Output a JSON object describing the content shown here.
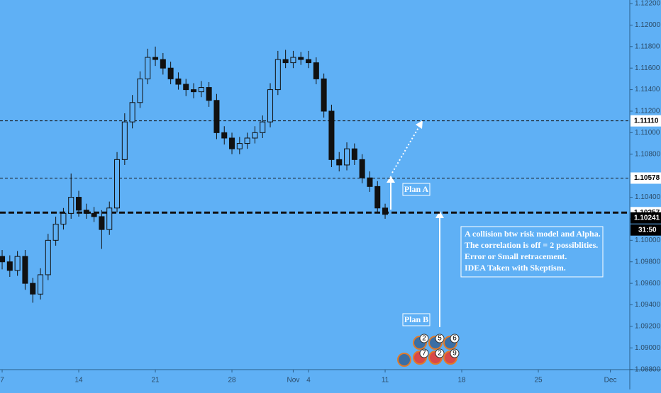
{
  "chart_data": {
    "type": "candlestick",
    "background": "#5fb0f5",
    "candle_color": "#111111",
    "x": [
      0,
      0.5,
      1,
      1.5,
      2,
      2.5,
      3,
      3.5,
      4,
      4.5,
      5,
      5.5,
      6,
      6.5,
      7,
      7.5,
      8,
      8.5,
      9,
      9.5,
      10,
      10.5,
      11,
      11.5,
      12,
      12.5,
      13,
      13.5,
      14,
      14.5,
      15,
      15.5,
      16,
      16.5,
      17,
      17.5,
      18,
      18.5,
      19,
      19.5,
      20,
      20.5,
      21,
      21.5,
      22,
      22.5,
      23,
      23.5,
      24,
      24.5,
      25
    ],
    "open": [
      1.0985,
      1.098,
      1.0972,
      1.0985,
      1.096,
      1.095,
      1.0968,
      1.1,
      1.1015,
      1.1025,
      1.104,
      1.1028,
      1.1025,
      1.1022,
      1.101,
      1.103,
      1.1075,
      1.111,
      1.1128,
      1.115,
      1.117,
      1.1168,
      1.116,
      1.115,
      1.1145,
      1.114,
      1.1138,
      1.1142,
      1.113,
      1.11,
      1.1095,
      1.1085,
      1.109,
      1.1095,
      1.11,
      1.111,
      1.114,
      1.1168,
      1.1165,
      1.117,
      1.1168,
      1.1165,
      1.115,
      1.112,
      1.1075,
      1.107,
      1.1085,
      1.1075,
      1.1058,
      1.105,
      1.103
    ],
    "high": [
      1.0991,
      1.0986,
      1.099,
      1.0991,
      1.0965,
      1.0974,
      1.1006,
      1.1022,
      1.103,
      1.1062,
      1.1046,
      1.1034,
      1.1031,
      1.1028,
      1.1036,
      1.1082,
      1.1118,
      1.1135,
      1.1157,
      1.1178,
      1.118,
      1.1174,
      1.1166,
      1.1156,
      1.115,
      1.1146,
      1.1148,
      1.1147,
      1.1136,
      1.1106,
      1.11,
      1.1096,
      1.11,
      1.1106,
      1.1116,
      1.1146,
      1.1176,
      1.1177,
      1.1176,
      1.1175,
      1.1176,
      1.117,
      1.1155,
      1.1126,
      1.1082,
      1.1091,
      1.109,
      1.108,
      1.1064,
      1.1055,
      1.1034
    ],
    "low": [
      1.0973,
      1.0966,
      1.0967,
      1.0954,
      1.0942,
      1.0945,
      1.0963,
      1.0995,
      1.101,
      1.102,
      1.1022,
      1.102,
      1.1017,
      1.0992,
      1.1005,
      1.1026,
      1.107,
      1.1104,
      1.1123,
      1.1145,
      1.1162,
      1.1154,
      1.1145,
      1.114,
      1.1134,
      1.1132,
      1.1133,
      1.1124,
      1.1094,
      1.1089,
      1.108,
      1.108,
      1.1085,
      1.109,
      1.1095,
      1.1105,
      1.1135,
      1.116,
      1.116,
      1.1163,
      1.116,
      1.1145,
      1.1114,
      1.1068,
      1.1064,
      1.1065,
      1.107,
      1.1053,
      1.1045,
      1.1026,
      1.102
    ],
    "close": [
      1.098,
      1.0972,
      1.0985,
      1.096,
      1.095,
      1.0968,
      1.1,
      1.1015,
      1.1025,
      1.104,
      1.1028,
      1.1025,
      1.1022,
      1.101,
      1.103,
      1.1075,
      1.111,
      1.1128,
      1.115,
      1.117,
      1.1168,
      1.116,
      1.115,
      1.1145,
      1.114,
      1.1138,
      1.1142,
      1.113,
      1.11,
      1.1095,
      1.1085,
      1.109,
      1.1095,
      1.11,
      1.111,
      1.114,
      1.1168,
      1.1165,
      1.117,
      1.1168,
      1.1165,
      1.115,
      1.112,
      1.1075,
      1.107,
      1.1085,
      1.1075,
      1.1058,
      1.105,
      1.103,
      1.10241
    ],
    "xlim": [
      -0.14,
      40.97
    ],
    "xticks": [
      {
        "value": 0,
        "label": "7"
      },
      {
        "value": 5,
        "label": "14"
      },
      {
        "value": 10,
        "label": "21"
      },
      {
        "value": 15,
        "label": "28"
      },
      {
        "value": 19,
        "label": "Nov"
      },
      {
        "value": 20,
        "label": "4"
      },
      {
        "value": 25,
        "label": "11"
      },
      {
        "value": 30,
        "label": "18"
      },
      {
        "value": 35,
        "label": "25"
      },
      {
        "value": 39.7,
        "label": "Dec"
      }
    ],
    "ylim": [
      1.08798,
      1.12233
    ],
    "yticks": [
      {
        "value": 1.122,
        "label": "1.12200"
      },
      {
        "value": 1.12,
        "label": "1.12000"
      },
      {
        "value": 1.118,
        "label": "1.11800"
      },
      {
        "value": 1.116,
        "label": "1.11600"
      },
      {
        "value": 1.114,
        "label": "1.11400"
      },
      {
        "value": 1.112,
        "label": "1.11200"
      },
      {
        "value": 1.11,
        "label": "1.11000"
      },
      {
        "value": 1.108,
        "label": "1.10800"
      },
      {
        "value": 1.106,
        "label": "1.10600"
      },
      {
        "value": 1.104,
        "label": "1.10400"
      },
      {
        "value": 1.102,
        "label": "1.10200"
      },
      {
        "value": 1.1,
        "label": "1.10000"
      },
      {
        "value": 1.098,
        "label": "1.09800"
      },
      {
        "value": 1.096,
        "label": "1.09600"
      },
      {
        "value": 1.094,
        "label": "1.09400"
      },
      {
        "value": 1.092,
        "label": "1.09200"
      },
      {
        "value": 1.09,
        "label": "1.09000"
      },
      {
        "value": 1.088,
        "label": "1.08800"
      }
    ],
    "levels": [
      {
        "value": 1.1111,
        "label": "1.11110"
      },
      {
        "value": 1.10578,
        "label": "1.10578"
      },
      {
        "value": 1.10257,
        "label": "1.10257"
      }
    ],
    "last_price": {
      "value": 1.10241,
      "label": "1.10241"
    },
    "countdown": "31:50",
    "plan_a": "Plan A",
    "plan_b": "Plan B",
    "note": [
      "A collision btw risk model and  Alpha.",
      "The correlation is off = 2 possiblities.",
      "Error or Small retracement.",
      "IDEA Taken with Skeptism."
    ],
    "events": [
      "2",
      "5",
      "6",
      "7",
      "2",
      "9"
    ]
  }
}
